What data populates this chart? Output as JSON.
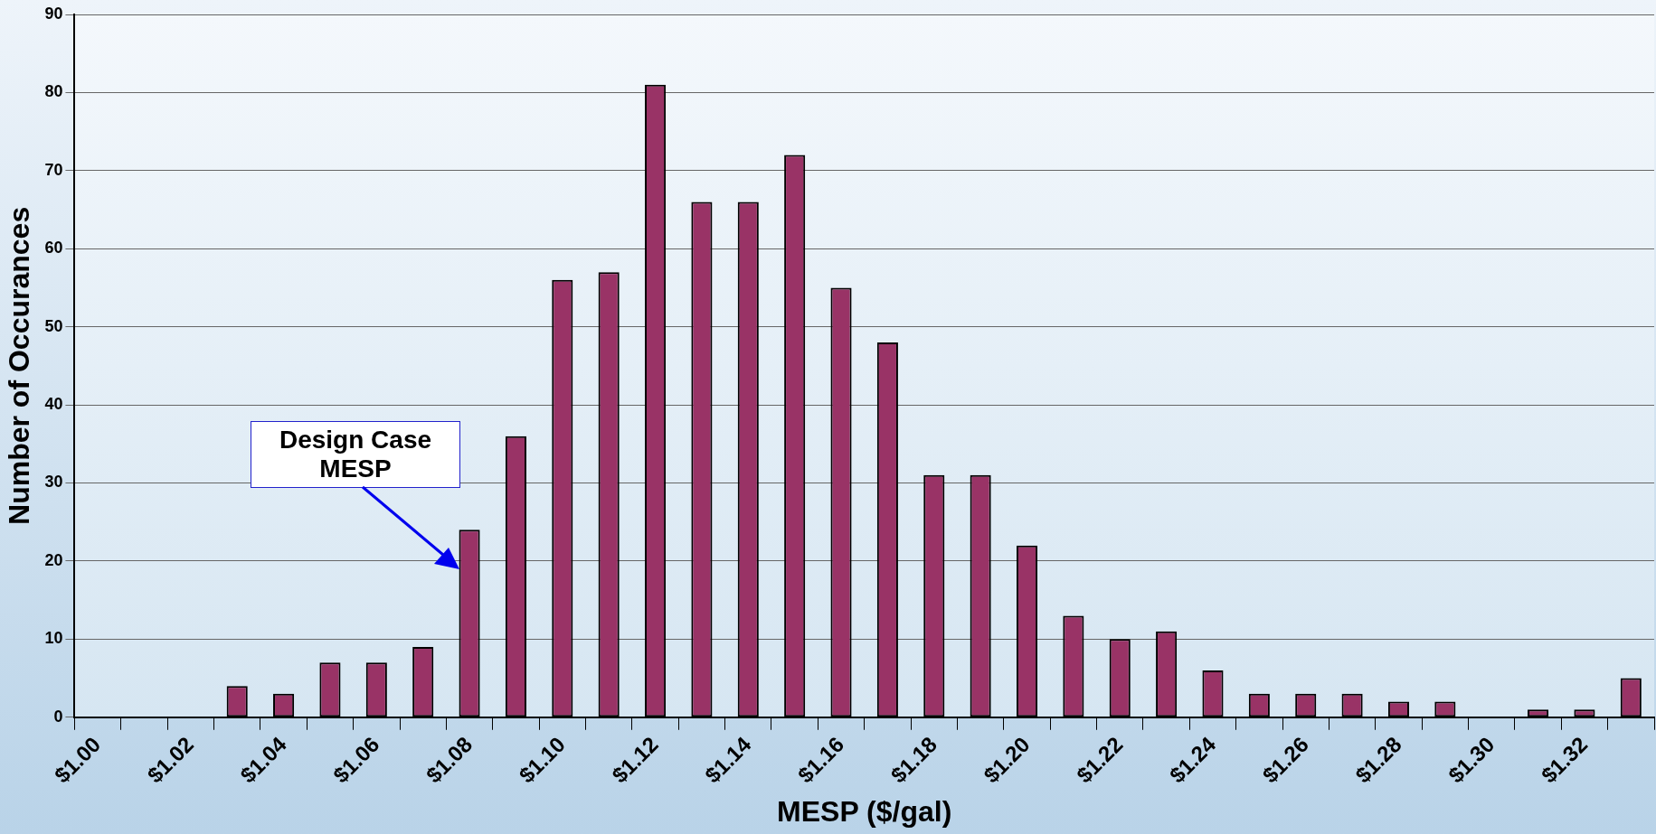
{
  "chart_data": {
    "type": "bar",
    "xlabel": "MESP ($/gal)",
    "ylabel": "Number of Occurances",
    "categories": [
      "$1.00",
      null,
      "$1.02",
      null,
      "$1.04",
      null,
      "$1.06",
      null,
      "$1.08",
      null,
      "$1.10",
      null,
      "$1.12",
      null,
      "$1.14",
      null,
      "$1.16",
      null,
      "$1.18",
      null,
      "$1.20",
      null,
      "$1.22",
      null,
      "$1.24",
      null,
      "$1.26",
      null,
      "$1.28",
      null,
      "$1.30",
      null,
      "$1.32",
      null
    ],
    "values": [
      0,
      0,
      0,
      4,
      3,
      7,
      7,
      9,
      24,
      36,
      56,
      57,
      81,
      66,
      66,
      72,
      55,
      48,
      31,
      31,
      22,
      13,
      10,
      11,
      6,
      3,
      3,
      3,
      2,
      2,
      0,
      1,
      1,
      5
    ],
    "color": "#993366",
    "ylim": [
      0,
      90
    ],
    "yticks": [
      0,
      10,
      20,
      30,
      40,
      50,
      60,
      70,
      80,
      90
    ],
    "grid": "y",
    "legend": false,
    "annotations": [
      "Design Case MESP"
    ]
  }
}
